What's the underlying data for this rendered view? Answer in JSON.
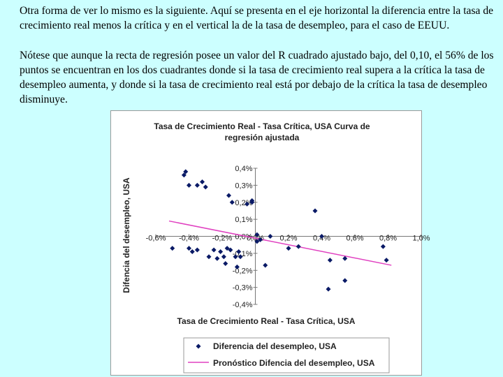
{
  "text": {
    "paragraph1": "Otra forma de ver lo mismo es la siguiente. Aquí se presenta en el eje horizontal la diferencia entre la tasa de crecimiento real menos la crítica y en el vertical la de la tasa de desempleo, para el caso de EEUU.",
    "paragraph2": "Nótese que aunque la recta de regresión posee un valor del R cuadrado ajustado bajo, del 0,10, el  56% de los puntos se encuentran en los dos cuadrantes donde si la tasa de crecimiento real supera a la crítica la tasa de desempleo aumenta, y donde si la tasa de crecimiento real está por debajo de la crítica la tasa de desempleo disminuye."
  },
  "chart_data": {
    "type": "scatter",
    "title_line1": "Tasa de Crecimiento Real - Tasa Crítica, USA Curva de",
    "title_line2": "regresión ajustada",
    "xlabel": "Tasa de Crecimiento Real - Tasa Crítica, USA",
    "ylabel": "Difencia del desempleo, USA",
    "xlim": [
      -0.6,
      1.0
    ],
    "ylim": [
      -0.4,
      0.4
    ],
    "x_ticks": [
      -0.6,
      -0.4,
      -0.2,
      0.0,
      0.2,
      0.4,
      0.6,
      0.8,
      1.0
    ],
    "x_tick_labels": [
      "-0,6%",
      "-0,4%",
      "-0,2%",
      "0,0%",
      "0,2%",
      "0,4%",
      "0,6%",
      "0,8%",
      "1,0%"
    ],
    "y_ticks": [
      -0.4,
      -0.3,
      -0.2,
      -0.1,
      0.0,
      0.1,
      0.2,
      0.3,
      0.4
    ],
    "y_tick_labels": [
      "-0,4%",
      "-0,3%",
      "-0,2%",
      "-0,1%",
      "0,0%",
      "0,1%",
      "0,2%",
      "0,3%",
      "0,4%"
    ],
    "grid": false,
    "legend_position": "bottom",
    "series": [
      {
        "name": "Diferencia del desempleo, USA",
        "type": "scatter",
        "color": "#0a1a66",
        "x": [
          -0.42,
          -0.43,
          -0.4,
          -0.35,
          -0.32,
          -0.3,
          -0.16,
          -0.14,
          -0.05,
          -0.02,
          -0.02,
          0.01,
          0.01,
          0.03,
          0.09,
          0.36,
          0.4,
          0.77,
          -0.5,
          -0.4,
          -0.38,
          -0.35,
          -0.25,
          -0.21,
          -0.19,
          -0.17,
          -0.15,
          -0.12,
          -0.1,
          -0.09,
          -0.28,
          -0.23,
          -0.18,
          -0.11,
          0.06,
          0.26,
          0.2,
          0.45,
          0.54,
          0.79,
          0.44,
          0.54
        ],
        "y": [
          0.38,
          0.36,
          0.3,
          0.3,
          0.32,
          0.29,
          0.24,
          0.2,
          0.19,
          0.2,
          0.21,
          0.01,
          -0.03,
          -0.02,
          0.0,
          0.15,
          0.0,
          -0.06,
          -0.07,
          -0.07,
          -0.09,
          -0.08,
          -0.08,
          -0.09,
          -0.12,
          -0.07,
          -0.08,
          -0.12,
          -0.09,
          -0.12,
          -0.12,
          -0.13,
          -0.16,
          -0.18,
          -0.17,
          -0.06,
          -0.07,
          -0.14,
          -0.13,
          -0.14,
          -0.31,
          -0.26
        ]
      },
      {
        "name": "Pronóstico Difencia del desempleo, USA",
        "type": "line",
        "color": "#e040c0",
        "x": [
          -0.52,
          0.82
        ],
        "y": [
          0.09,
          -0.17
        ]
      }
    ]
  }
}
